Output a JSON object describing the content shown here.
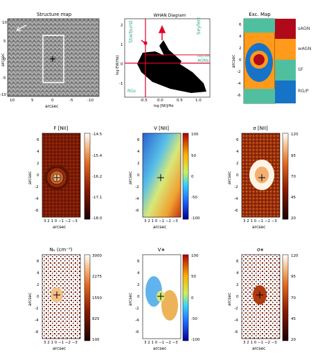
{
  "panels": {
    "structure": {
      "title": "Structure map",
      "xlabel": "arcsec",
      "ylabel": "arcsec",
      "xticks": [
        "10",
        "5",
        "0",
        "-5",
        "-10"
      ],
      "yticks": [
        "10",
        "5",
        "0",
        "-5",
        "-10"
      ]
    },
    "whan": {
      "title": "WHAN Diagram",
      "xlabel": "log [NII]/Hα",
      "ylabel": "log EW(Hα)",
      "regions": [
        "Seyfert",
        "Starburst",
        "AGNs",
        "RGs",
        "weak AGN"
      ],
      "xticks": [
        "-0.5",
        "0.0",
        "0.5",
        "1.0"
      ],
      "yticks": [
        "2",
        "1",
        "0",
        "-1"
      ]
    },
    "exc": {
      "title": "Exc. Map",
      "ylabel": "arcsec",
      "legend": [
        "sAGN",
        "wAGN",
        "SF",
        "RG/P"
      ],
      "yticks": [
        "6",
        "4",
        "2",
        "0",
        "-2",
        "-4",
        "-6"
      ]
    },
    "fnii": {
      "title": "F [NII]",
      "cbar": [
        "-14.5",
        "-15.4",
        "-16.2",
        "-17.1",
        "-18.0"
      ]
    },
    "vnii": {
      "title": "V [NII]",
      "cbar": [
        "100",
        "50",
        "0",
        "-50",
        "-100"
      ]
    },
    "snii": {
      "title": "σ [NII]",
      "cbar": [
        "120",
        "95",
        "70",
        "45",
        "20"
      ]
    },
    "ne": {
      "title": "Nₑ (cm⁻³)",
      "cbar": [
        "3000",
        "2275",
        "1550",
        "825",
        "100"
      ]
    },
    "vstar": {
      "title": "V∗",
      "cbar": [
        "100",
        "50",
        "0",
        "-50",
        "-100"
      ]
    },
    "sstar": {
      "title": "σ∗",
      "cbar": [
        "120",
        "95",
        "70",
        "45",
        "20"
      ]
    },
    "common": {
      "xlabel": "arcsec",
      "ylabel": "arcsec",
      "xticks": "3 2 1 0 −1 −2 −3",
      "yticks": [
        "6",
        "4",
        "2",
        "0",
        "-2",
        "-4",
        "-6"
      ]
    }
  }
}
